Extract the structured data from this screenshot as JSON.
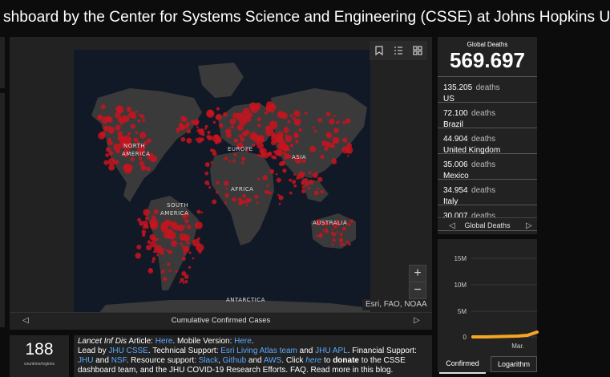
{
  "header": {
    "title": "shboard by the Center for Systems Science and Engineering (CSSE) at Johns Hopkins U"
  },
  "map": {
    "footer_label": "Cumulative Confirmed Cases",
    "attribution": "Esri, FAO, NOAA",
    "zoom_in": "+",
    "zoom_out": "−",
    "tools": [
      "bookmark-icon",
      "list-icon",
      "grid-icon"
    ],
    "labels": {
      "north_america_1": "NORTH",
      "north_america_2": "AMERICA",
      "europe": "EUROPE",
      "asia": "ASIA",
      "africa": "AFRICA",
      "south_america_1": "SOUTH",
      "south_america_2": "AMERICA",
      "australia": "AUSTRALIA",
      "antarctica": "ANTARCTICA"
    },
    "colors": {
      "ocean": "#111926",
      "land": "#3a3a3a",
      "bubble": "#c8141e"
    }
  },
  "deaths": {
    "heading": "Global Deaths",
    "total": "569.697",
    "unit": "deaths",
    "rows": [
      {
        "value": "135.205",
        "country": "US"
      },
      {
        "value": "72.100",
        "country": "Brazil"
      },
      {
        "value": "44.904",
        "country": "United Kingdom"
      },
      {
        "value": "35.006",
        "country": "Mexico"
      },
      {
        "value": "34.954",
        "country": "Italy"
      },
      {
        "value": "30.007",
        "country": ""
      }
    ],
    "footer_label": "Global Deaths"
  },
  "chart": {
    "y_ticks": [
      "15M",
      "10M",
      "5M",
      "0"
    ],
    "x_tick": "Mar.",
    "line_color": "#f5a623",
    "tabs": [
      "Confirmed",
      "Logarithm"
    ]
  },
  "count": {
    "value": "188",
    "label": "countries/regions"
  },
  "info": {
    "l1_a": "Lancet Inf Dis",
    "l1_b": " Article: ",
    "l1_here1": "Here",
    "l1_c": ". Mobile Version: ",
    "l1_here2": "Here",
    "l1_d": ".",
    "l2_a": "Lead by ",
    "l2_jhu": "JHU CSSE",
    "l2_b": ". Technical Support: ",
    "l2_esri": "Esri Living Atlas team",
    "l2_c": " and ",
    "l2_apl": "JHU APL",
    "l2_d": ". Financial Support:",
    "l3_jhu": "JHU",
    "l3_a": " and ",
    "l3_nsf": "NSF",
    "l3_b": ". Resource support: ",
    "l3_slack": "Slack",
    "l3_c": ", ",
    "l3_github": "Github",
    "l3_d": " and ",
    "l3_aws": "AWS",
    "l3_e": ". Click ",
    "l3_here": "here",
    "l3_f": " to ",
    "l3_donate": "donate",
    "l3_g": " to the CSSE",
    "l4": "dashboard team, and the JHU COVID-19 Research Efforts. FAQ. Read more in this blog."
  }
}
